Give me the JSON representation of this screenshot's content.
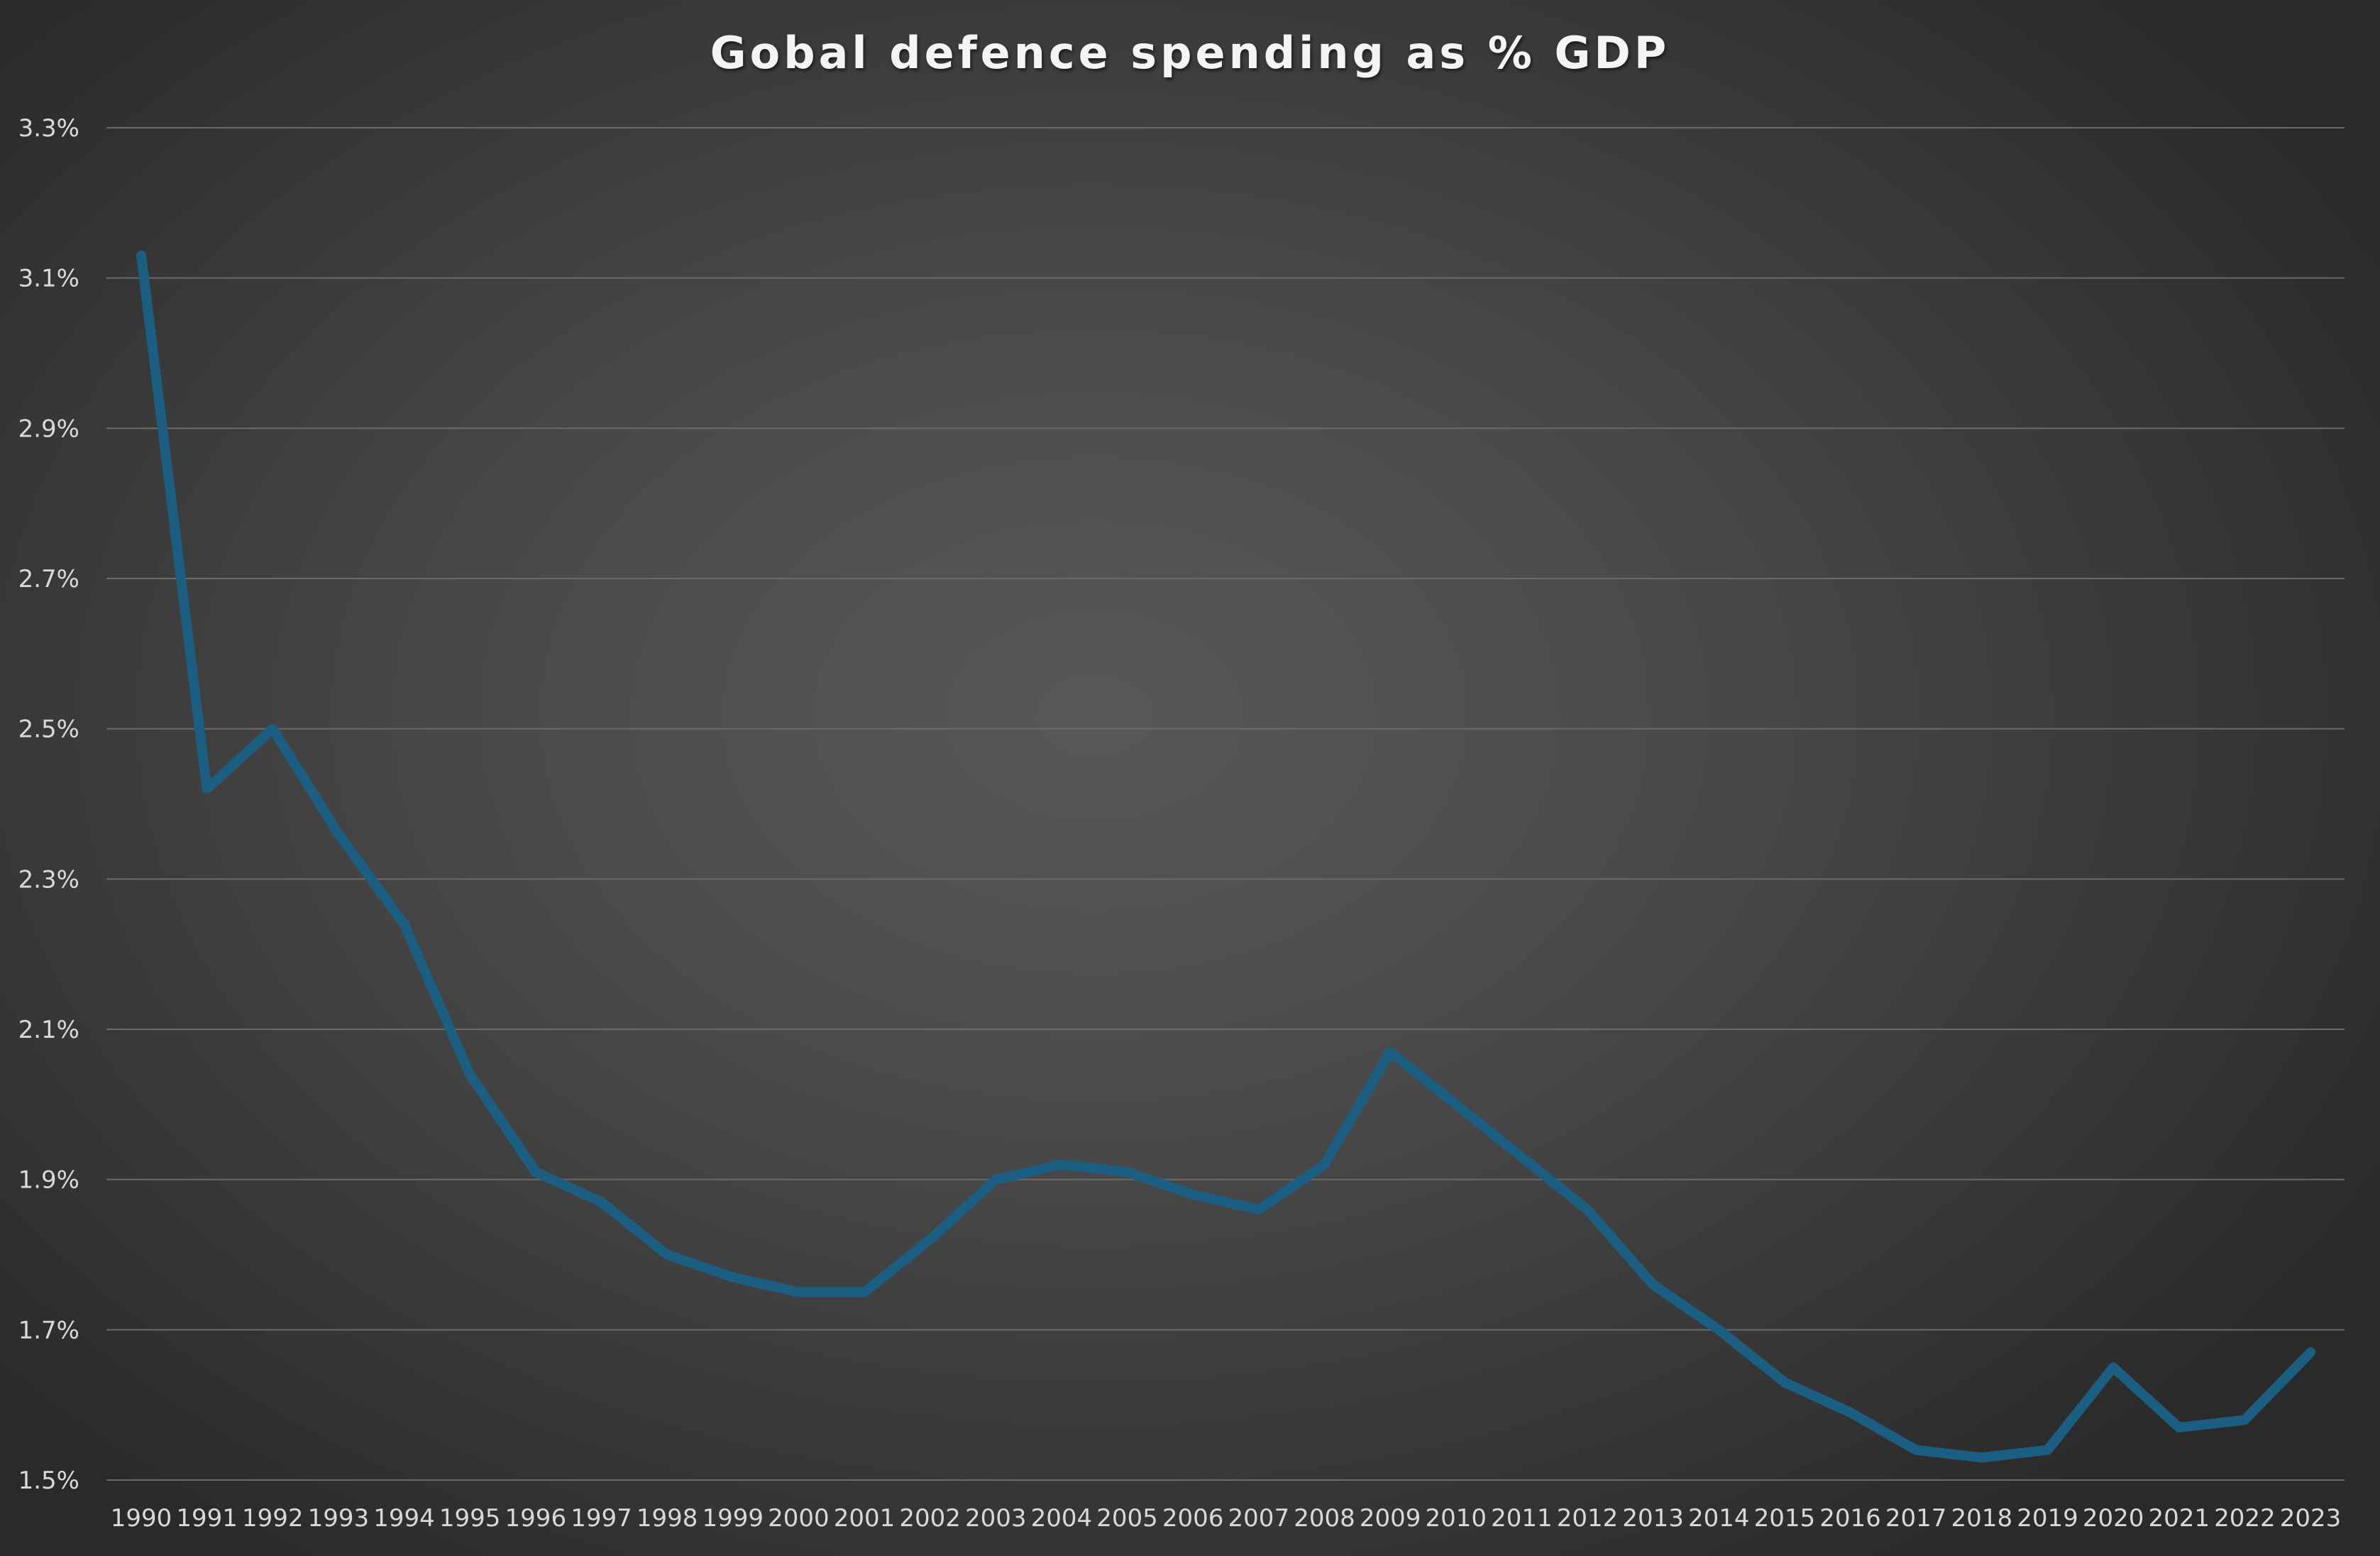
{
  "chart_data": {
    "type": "line",
    "title": "Gobal defence spending as % GDP",
    "xlabel": "",
    "ylabel": "",
    "x": [
      "1990",
      "1991",
      "1992",
      "1993",
      "1994",
      "1995",
      "1996",
      "1997",
      "1998",
      "1999",
      "2000",
      "2001",
      "2002",
      "2003",
      "2004",
      "2005",
      "2006",
      "2007",
      "2008",
      "2009",
      "2010",
      "2011",
      "2012",
      "2013",
      "2014",
      "2015",
      "2016",
      "2017",
      "2018",
      "2019",
      "2020",
      "2021",
      "2022",
      "2023"
    ],
    "series": [
      {
        "name": "",
        "color": "#1b5e82",
        "values": [
          3.13,
          2.42,
          2.5,
          2.36,
          2.24,
          2.04,
          1.91,
          1.87,
          1.8,
          1.77,
          1.75,
          1.75,
          1.82,
          1.9,
          1.92,
          1.91,
          1.88,
          1.86,
          1.92,
          2.07,
          2.0,
          1.93,
          1.86,
          1.76,
          1.7,
          1.63,
          1.59,
          1.54,
          1.53,
          1.54,
          1.65,
          1.57,
          1.58,
          1.67
        ]
      }
    ],
    "yticks": [
      "1.5%",
      "1.7%",
      "1.9%",
      "2.1%",
      "2.3%",
      "2.5%",
      "2.7%",
      "2.9%",
      "3.1%",
      "3.3%"
    ],
    "ytick_values": [
      1.5,
      1.7,
      1.9,
      2.1,
      2.3,
      2.5,
      2.7,
      2.9,
      3.1,
      3.3
    ],
    "ylim": [
      1.5,
      3.3
    ],
    "grid": true,
    "legend": "none",
    "background": "#4a4a4a"
  }
}
